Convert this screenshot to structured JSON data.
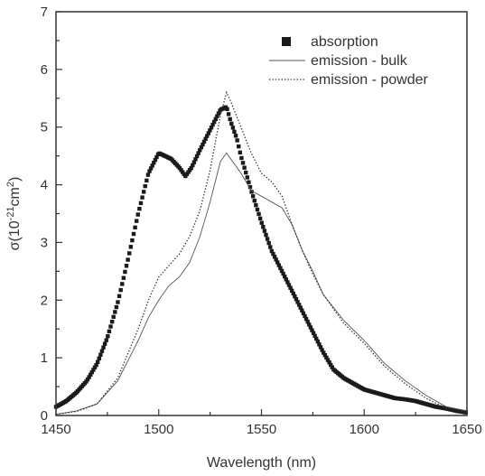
{
  "chart_data": {
    "type": "line",
    "title": "",
    "xlabel": "Wavelength (nm)",
    "ylabel_parts": [
      "σ(10",
      "-21",
      "cm",
      "2",
      ")"
    ],
    "xlim": [
      1450,
      1650
    ],
    "ylim": [
      0,
      7
    ],
    "xticks": [
      "1450",
      "1500",
      "1550",
      "1600",
      "1650"
    ],
    "yticks": [
      "0",
      "1",
      "2",
      "3",
      "4",
      "5",
      "6",
      "7"
    ],
    "grid": false,
    "legend_position": "top-right",
    "series": [
      {
        "name": "absorption",
        "style": "squares",
        "color": "#1a1a1a",
        "x": [
          1450,
          1455,
          1460,
          1465,
          1470,
          1475,
          1480,
          1485,
          1490,
          1495,
          1500,
          1503,
          1506,
          1510,
          1513,
          1516,
          1520,
          1525,
          1530,
          1533,
          1535,
          1538,
          1540,
          1545,
          1550,
          1555,
          1560,
          1565,
          1570,
          1575,
          1580,
          1585,
          1590,
          1595,
          1600,
          1605,
          1610,
          1615,
          1620,
          1625,
          1630,
          1635,
          1640,
          1645,
          1650
        ],
        "y": [
          0.15,
          0.25,
          0.4,
          0.6,
          0.9,
          1.35,
          1.95,
          2.7,
          3.5,
          4.2,
          4.55,
          4.5,
          4.45,
          4.3,
          4.15,
          4.3,
          4.6,
          4.95,
          5.3,
          5.35,
          5.1,
          4.8,
          4.5,
          3.9,
          3.35,
          2.85,
          2.5,
          2.15,
          1.8,
          1.45,
          1.1,
          0.8,
          0.65,
          0.55,
          0.45,
          0.4,
          0.35,
          0.3,
          0.28,
          0.25,
          0.2,
          0.15,
          0.12,
          0.08,
          0.05
        ]
      },
      {
        "name": "emission - bulk",
        "style": "solid",
        "color": "#555555",
        "x": [
          1450,
          1460,
          1470,
          1480,
          1490,
          1495,
          1500,
          1505,
          1510,
          1515,
          1520,
          1525,
          1530,
          1533,
          1535,
          1540,
          1545,
          1550,
          1555,
          1560,
          1565,
          1570,
          1575,
          1580,
          1590,
          1600,
          1610,
          1620,
          1630,
          1640,
          1650
        ],
        "y": [
          0.02,
          0.08,
          0.2,
          0.6,
          1.3,
          1.7,
          2.0,
          2.25,
          2.4,
          2.65,
          3.1,
          3.7,
          4.4,
          4.55,
          4.45,
          4.2,
          3.9,
          3.8,
          3.7,
          3.6,
          3.3,
          2.85,
          2.5,
          2.1,
          1.65,
          1.3,
          0.9,
          0.6,
          0.35,
          0.15,
          0.08
        ]
      },
      {
        "name": "emission - powder",
        "style": "dotted",
        "color": "#333333",
        "x": [
          1450,
          1460,
          1470,
          1480,
          1490,
          1495,
          1500,
          1505,
          1510,
          1515,
          1520,
          1525,
          1530,
          1533,
          1535,
          1540,
          1545,
          1550,
          1555,
          1560,
          1565,
          1570,
          1575,
          1580,
          1590,
          1600,
          1610,
          1620,
          1630,
          1640,
          1650
        ],
        "y": [
          0.02,
          0.07,
          0.2,
          0.65,
          1.5,
          2.0,
          2.4,
          2.6,
          2.8,
          3.1,
          3.55,
          4.25,
          5.2,
          5.6,
          5.45,
          5.0,
          4.55,
          4.2,
          4.05,
          3.8,
          3.3,
          2.85,
          2.45,
          2.1,
          1.6,
          1.25,
          0.85,
          0.55,
          0.3,
          0.12,
          0.05
        ]
      }
    ]
  }
}
